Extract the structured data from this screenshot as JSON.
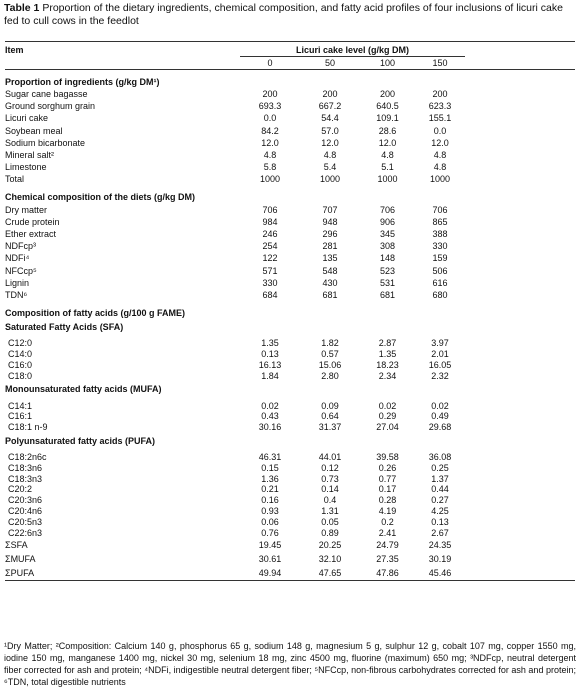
{
  "title": {
    "label": "Table 1",
    "text": "Proportion of the dietary ingredients, chemical composition, and fatty acid profiles of four inclusions of licuri cake fed to cull cows in the feedlot"
  },
  "table": {
    "item_header": "Item",
    "level_header": "Licuri cake level (g/kg DM)",
    "columns": [
      "0",
      "50",
      "100",
      "150"
    ],
    "ingredients": {
      "title": "Proportion of ingredients (g/kg DM¹)",
      "rows": [
        [
          "Sugar cane bagasse",
          "200",
          "200",
          "200",
          "200"
        ],
        [
          "Ground sorghum grain",
          "693.3",
          "667.2",
          "640.5",
          "623.3"
        ],
        [
          "Licuri cake",
          "0.0",
          "54.4",
          "109.1",
          "155.1"
        ],
        [
          "Soybean meal",
          "84.2",
          "57.0",
          "28.6",
          "0.0"
        ],
        [
          "Sodium bicarbonate",
          "12.0",
          "12.0",
          "12.0",
          "12.0"
        ],
        [
          "Mineral salt²",
          "4.8",
          "4.8",
          "4.8",
          "4.8"
        ],
        [
          "Limestone",
          "5.8",
          "5.4",
          "5.1",
          "4.8"
        ],
        [
          "Total",
          "1000",
          "1000",
          "1000",
          "1000"
        ]
      ]
    },
    "chemical": {
      "title": "Chemical composition of the diets (g/kg DM)",
      "rows": [
        [
          "Dry matter",
          "706",
          "707",
          "706",
          "706"
        ],
        [
          "Crude protein",
          "984",
          "948",
          "906",
          "865"
        ],
        [
          "Ether extract",
          "246",
          "296",
          "345",
          "388"
        ],
        [
          "NDFcp³",
          "254",
          "281",
          "308",
          "330"
        ],
        [
          "NDFi⁴",
          "122",
          "135",
          "148",
          "159"
        ],
        [
          "NFCcp⁵",
          "571",
          "548",
          "523",
          "506"
        ],
        [
          "Lignin",
          "330",
          "430",
          "531",
          "616"
        ],
        [
          "TDN⁶",
          "684",
          "681",
          "681",
          "680"
        ]
      ]
    },
    "fatty_acids": {
      "title": "Composition of fatty acids (g/100 g FAME)",
      "groups": [
        {
          "title": "Saturated Fatty Acids (SFA)",
          "rows": [
            [
              "C12:0",
              "1.35",
              "1.82",
              "2.87",
              "3.97"
            ],
            [
              "C14:0",
              "0.13",
              "0.57",
              "1.35",
              "2.01"
            ],
            [
              "C16:0",
              "16.13",
              "15.06",
              "18.23",
              "16.05"
            ],
            [
              "C18:0",
              "1.84",
              "2.80",
              "2.34",
              "2.32"
            ]
          ]
        },
        {
          "title": "Monounsaturated fatty acids (MUFA)",
          "rows": [
            [
              "C14:1",
              "0.02",
              "0.09",
              "0.02",
              "0.02"
            ],
            [
              "C16:1",
              "0.43",
              "0.64",
              "0.29",
              "0.49"
            ],
            [
              "C18:1 n-9",
              "30.16",
              "31.37",
              "27.04",
              "29.68"
            ]
          ]
        },
        {
          "title": "Polyunsaturated fatty acids (PUFA)",
          "rows": [
            [
              "C18:2n6c",
              "46.31",
              "44.01",
              "39.58",
              "36.08"
            ],
            [
              "C18:3n6",
              "0.15",
              "0.12",
              "0.26",
              "0.25"
            ],
            [
              "C18:3n3",
              "1.36",
              "0.73",
              "0.77",
              "1.37"
            ],
            [
              "C20:2",
              "0.21",
              "0.14",
              "0.17",
              "0.44"
            ],
            [
              "C20:3n6",
              "0.16",
              "0.4",
              "0.28",
              "0.27"
            ],
            [
              "C20:4n6",
              "0.93",
              "1.31",
              "4.19",
              "4.25"
            ],
            [
              "C20:5n3",
              "0.06",
              "0.05",
              "0.2",
              "0.13"
            ],
            [
              "C22:6n3",
              "0.76",
              "0.89",
              "2.41",
              "2.67"
            ]
          ]
        }
      ],
      "totals": [
        [
          "ΣSFA",
          "19.45",
          "20.25",
          "24.79",
          "24.35"
        ],
        [
          "ΣMUFA",
          "30.61",
          "32.10",
          "27.35",
          "30.19"
        ],
        [
          "ΣPUFA",
          "49.94",
          "47.65",
          "47.86",
          "45.46"
        ]
      ]
    }
  },
  "footnote": "¹Dry Matter; ²Composition: Calcium 140 g, phosphorus 65 g, sodium 148 g, magnesium 5 g, sulphur 12 g, cobalt 107 mg, copper 1550 mg, iodine 150 mg, manganese 1400 mg, nickel 30 mg, selenium 18 mg, zinc 4500 mg, fluorine (maximum) 650 mg; ³NDFcp, neutral detergent fiber corrected for ash and protein; ⁴NDFi, indigestible neutral detergent fiber; ⁵NFCcp, non-fibrous carbohydrates corrected for ash and protein; ⁶TDN, total digestible nutrients"
}
